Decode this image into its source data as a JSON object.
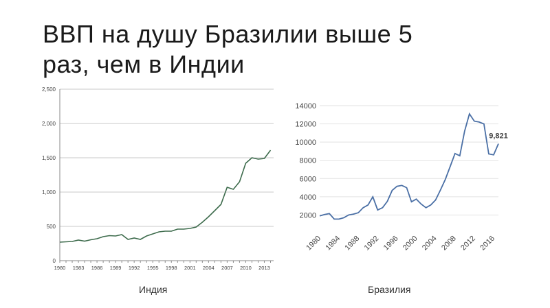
{
  "title": {
    "line1": "ВВП на душу Бразилии выше 5",
    "line2": "раз, чем в Индии"
  },
  "chart_data": [
    {
      "type": "line",
      "title": "",
      "xlabel": "Индия",
      "ylabel": "",
      "ylim": [
        0,
        2500
      ],
      "xlim": [
        1980,
        2014.5
      ],
      "yticks": [
        0,
        500,
        1000,
        1500,
        2000,
        2500
      ],
      "ytick_labels": [
        "0",
        "500",
        "1,000",
        "1,500",
        "2,000",
        "2,500"
      ],
      "xticks": [
        1980,
        1983,
        1986,
        1989,
        1992,
        1995,
        1998,
        2001,
        2004,
        2007,
        2010,
        2013
      ],
      "grid": true,
      "line_color": "#3d6b4c",
      "x": [
        1980,
        1981,
        1982,
        1983,
        1984,
        1985,
        1986,
        1987,
        1988,
        1989,
        1990,
        1991,
        1992,
        1993,
        1994,
        1995,
        1996,
        1997,
        1998,
        1999,
        2000,
        2001,
        2002,
        2003,
        2004,
        2005,
        2006,
        2007,
        2008,
        2009,
        2010,
        2011,
        2012,
        2013,
        2014
      ],
      "values": [
        270,
        275,
        280,
        300,
        285,
        305,
        320,
        350,
        365,
        360,
        380,
        310,
        330,
        310,
        360,
        390,
        420,
        430,
        430,
        460,
        460,
        470,
        490,
        560,
        640,
        730,
        820,
        1070,
        1040,
        1150,
        1420,
        1500,
        1480,
        1490,
        1610
      ]
    },
    {
      "type": "line",
      "title": "",
      "xlabel": "Бразилия",
      "ylabel": "",
      "ylim": [
        0,
        14000
      ],
      "xlim": [
        1980,
        2017
      ],
      "yticks": [
        2000,
        4000,
        6000,
        8000,
        10000,
        12000,
        14000
      ],
      "xticks": [
        1980,
        1984,
        1988,
        1992,
        1996,
        2000,
        2004,
        2008,
        2012,
        2016
      ],
      "grid": true,
      "line_color": "#4a6fa5",
      "annotation": {
        "x": 2017,
        "y": 9821,
        "text": "9,821"
      },
      "x": [
        1980,
        1981,
        1982,
        1983,
        1984,
        1985,
        1986,
        1987,
        1988,
        1989,
        1990,
        1991,
        1992,
        1993,
        1994,
        1995,
        1996,
        1997,
        1998,
        1999,
        2000,
        2001,
        2002,
        2003,
        2004,
        2005,
        2006,
        2007,
        2008,
        2009,
        2010,
        2011,
        2012,
        2013,
        2014,
        2015,
        2016,
        2017
      ],
      "values": [
        1900,
        2050,
        2150,
        1550,
        1550,
        1700,
        2000,
        2100,
        2250,
        2800,
        3100,
        4000,
        2550,
        2800,
        3500,
        4700,
        5150,
        5250,
        5000,
        3450,
        3750,
        3200,
        2800,
        3100,
        3650,
        4750,
        5900,
        7300,
        8750,
        8500,
        11200,
        13100,
        12300,
        12200,
        12000,
        8700,
        8600,
        9821
      ]
    }
  ]
}
